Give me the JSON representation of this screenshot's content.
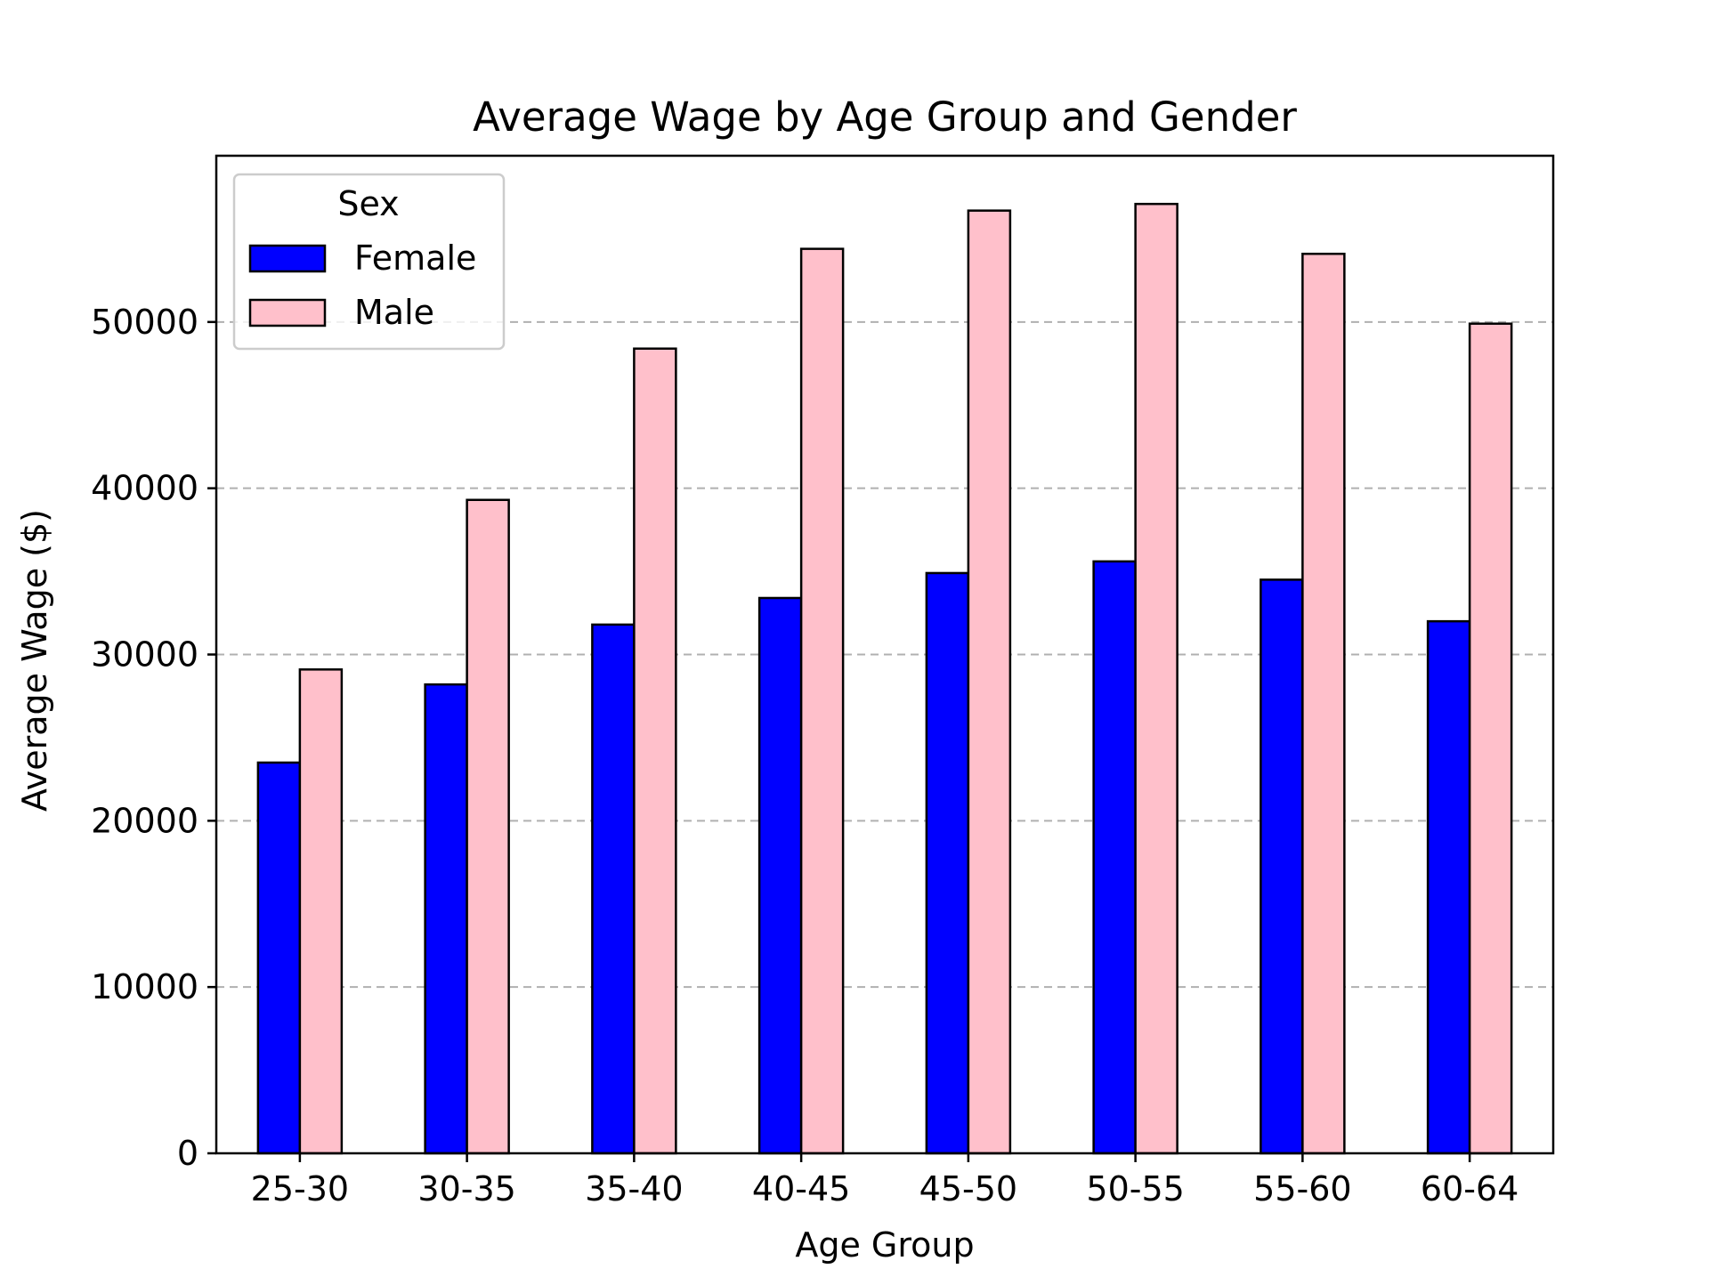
{
  "chart_data": {
    "type": "bar",
    "title": "Average Wage by Age Group and Gender",
    "xlabel": "Age Group",
    "ylabel": "Average Wage ($)",
    "categories": [
      "25-30",
      "30-35",
      "35-40",
      "40-45",
      "45-50",
      "50-55",
      "55-60",
      "60-64"
    ],
    "series": [
      {
        "name": "Female",
        "color": "#0000ff",
        "values": [
          23500,
          28200,
          31800,
          33400,
          34900,
          35600,
          34500,
          32000
        ]
      },
      {
        "name": "Male",
        "color": "#ffc0cb",
        "values": [
          29100,
          39300,
          48400,
          54400,
          56700,
          57100,
          54100,
          49900
        ]
      }
    ],
    "ylim": [
      0,
      60000
    ],
    "yticks": [
      0,
      10000,
      20000,
      30000,
      40000,
      50000
    ],
    "grid": "y-dashed",
    "legend": {
      "title": "Sex",
      "position": "top-left"
    }
  }
}
